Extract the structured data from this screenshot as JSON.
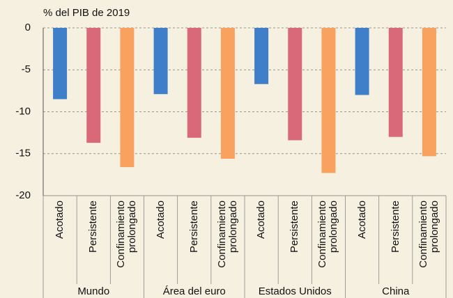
{
  "chart_data": {
    "type": "bar",
    "y_axis_label": "% del PIB de 2019",
    "categories": [
      "Mundo",
      "Área del euro",
      "Estados Unidos",
      "China"
    ],
    "series": [
      {
        "name": "Acotado",
        "color": "#3f7ec8",
        "values": [
          -8.5,
          -7.9,
          -6.7,
          -8.0
        ]
      },
      {
        "name": "Persistente",
        "color": "#d96879",
        "values": [
          -13.7,
          -13.1,
          -13.4,
          -13.0
        ]
      },
      {
        "name": "Confinamiento prolongado",
        "color": "#f9a15f",
        "values": [
          -16.6,
          -15.6,
          -17.3,
          -15.3
        ]
      }
    ],
    "ylim": [
      -20,
      0
    ],
    "yticks": [
      -20,
      -15,
      -10,
      -5,
      0
    ],
    "grid": true
  }
}
